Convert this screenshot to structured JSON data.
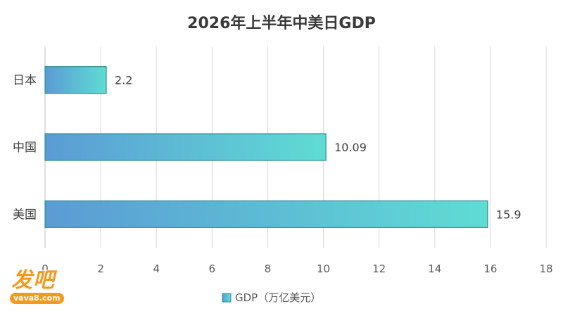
{
  "chart_data": {
    "type": "bar",
    "orientation": "horizontal",
    "title": "2026年上半年中美日GDP",
    "categories": [
      "日本",
      "中国",
      "美国"
    ],
    "series": [
      {
        "name": "GDP（万亿美元）",
        "values": [
          2.2,
          10.09,
          15.9
        ]
      }
    ],
    "data_labels": [
      "2.2",
      "10.09",
      "15.9"
    ],
    "x_ticks": [
      "0",
      "2",
      "4",
      "6",
      "8",
      "10",
      "12",
      "14",
      "16",
      "18"
    ],
    "xlim": [
      0,
      18
    ],
    "grid": true,
    "legend_position": "bottom",
    "colors": {
      "bar_gradient_start": "#5b9bd5",
      "bar_gradient_end": "#5fdcd4",
      "bar_border": "#2e8f92"
    }
  },
  "watermark": {
    "main": "发吧",
    "sub": "vava8.com"
  }
}
